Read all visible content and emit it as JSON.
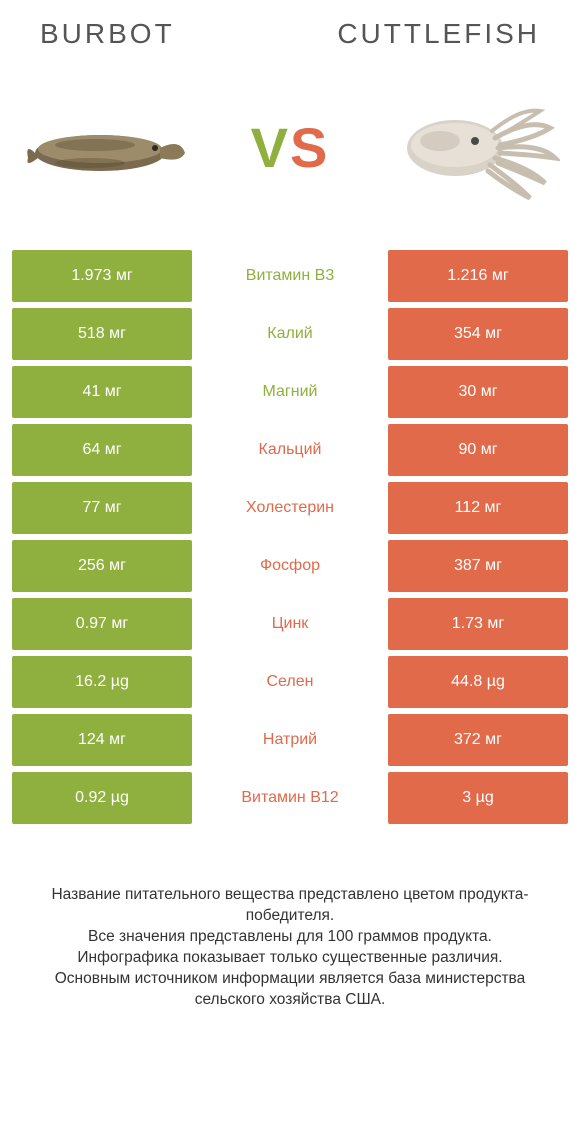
{
  "colors": {
    "left": "#8fb03e",
    "right": "#e06a4a",
    "bg": "#ffffff",
    "text": "#333333"
  },
  "header": {
    "left_title": "BURBOT",
    "right_title": "CUTTLEFISH"
  },
  "vs": {
    "v": "V",
    "s": "S"
  },
  "rows": [
    {
      "left": "1.973 мг",
      "mid": "Витамин B3",
      "right": "1.216 мг",
      "winner": "left"
    },
    {
      "left": "518 мг",
      "mid": "Калий",
      "right": "354 мг",
      "winner": "left"
    },
    {
      "left": "41 мг",
      "mid": "Магний",
      "right": "30 мг",
      "winner": "left"
    },
    {
      "left": "64 мг",
      "mid": "Кальций",
      "right": "90 мг",
      "winner": "right"
    },
    {
      "left": "77 мг",
      "mid": "Холестерин",
      "right": "112 мг",
      "winner": "right"
    },
    {
      "left": "256 мг",
      "mid": "Фосфор",
      "right": "387 мг",
      "winner": "right"
    },
    {
      "left": "0.97 мг",
      "mid": "Цинк",
      "right": "1.73 мг",
      "winner": "right"
    },
    {
      "left": "16.2 µg",
      "mid": "Селен",
      "right": "44.8 µg",
      "winner": "right"
    },
    {
      "left": "124 мг",
      "mid": "Натрий",
      "right": "372 мг",
      "winner": "right"
    },
    {
      "left": "0.92 µg",
      "mid": "Витамин B12",
      "right": "3 µg",
      "winner": "right"
    }
  ],
  "footer": {
    "line1": "Название питательного вещества представлено цветом продукта-победителя.",
    "line2": "Все значения представлены для 100 граммов продукта.",
    "line3": "Инфографика показывает только существенные различия.",
    "line4": "Основным источником информации является база министерства сельского хозяйства США."
  }
}
